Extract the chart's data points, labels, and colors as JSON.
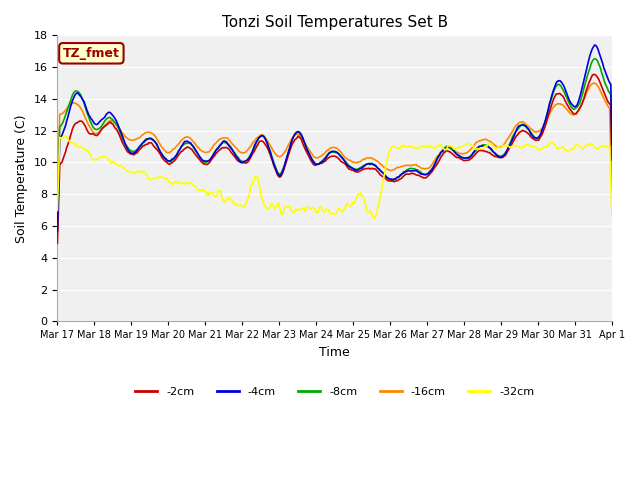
{
  "title": "Tonzi Soil Temperatures Set B",
  "xlabel": "Time",
  "ylabel": "Soil Temperature (C)",
  "ylim": [
    0,
    18
  ],
  "yticks": [
    0,
    2,
    4,
    6,
    8,
    10,
    12,
    14,
    16,
    18
  ],
  "annotation_text": "TZ_fmet",
  "annotation_bg": "#ffffcc",
  "annotation_fg": "#990000",
  "fig_facecolor": "#ffffff",
  "ax_facecolor": "#f0f0f0",
  "series_colors": {
    "-2cm": "#cc0000",
    "-4cm": "#0000dd",
    "-8cm": "#00aa00",
    "-16cm": "#ff8800",
    "-32cm": "#ffff00"
  },
  "legend_labels": [
    "-2cm",
    "-4cm",
    "-8cm",
    "-16cm",
    "-32cm"
  ],
  "xtick_labels": [
    "Mar 17",
    "Mar 18",
    "Mar 19",
    "Mar 20",
    "Mar 21",
    "Mar 22",
    "Mar 23",
    "Mar 24",
    "Mar 25",
    "Mar 26",
    "Mar 27",
    "Mar 28",
    "Mar 29",
    "Mar 30",
    "Mar 31",
    "Apr 1"
  ],
  "num_points": 480
}
